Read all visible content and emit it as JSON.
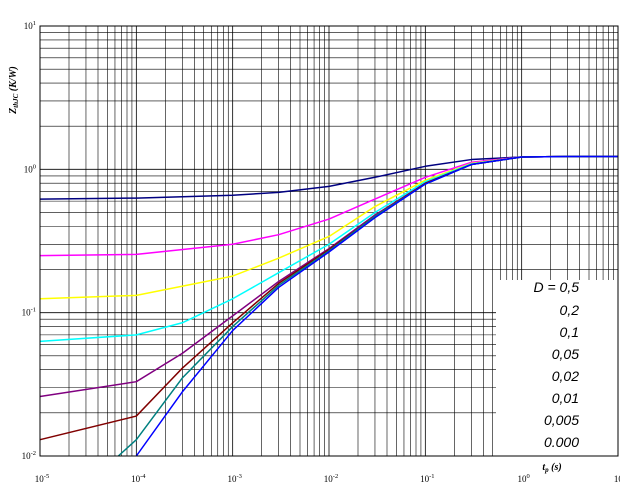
{
  "chart_data": {
    "type": "line",
    "xlabel": {
      "main": "t",
      "sub": "p",
      "unit": " (s)"
    },
    "ylabel": {
      "main": "Z",
      "sub": "thJC",
      "unit": " (K/W)"
    },
    "x_scale": "log",
    "y_scale": "log",
    "xlim": [
      1e-05,
      10
    ],
    "ylim": [
      0.01,
      10
    ],
    "grid": true,
    "x_ticks": [
      {
        "value": 1e-05,
        "base": "10",
        "exp": "-5"
      },
      {
        "value": 0.0001,
        "base": "10",
        "exp": "-4"
      },
      {
        "value": 0.001,
        "base": "10",
        "exp": "-3"
      },
      {
        "value": 0.01,
        "base": "10",
        "exp": "-2"
      },
      {
        "value": 0.1,
        "base": "10",
        "exp": "-1"
      },
      {
        "value": 1,
        "base": "10",
        "exp": "0"
      },
      {
        "value": 10,
        "base": "10",
        "exp": "1"
      }
    ],
    "y_ticks": [
      {
        "value": 0.01,
        "base": "10",
        "exp": "-2"
      },
      {
        "value": 0.1,
        "base": "10",
        "exp": "-1"
      },
      {
        "value": 1,
        "base": "10",
        "exp": "0"
      },
      {
        "value": 10,
        "base": "10",
        "exp": "1"
      }
    ],
    "legend_placement": "bottom-right",
    "series": [
      {
        "name": "D = 0,5",
        "color": "#000080",
        "x": [
          1e-05,
          0.0001,
          0.001,
          0.003,
          0.01,
          0.03,
          0.1,
          0.3,
          1,
          3,
          10
        ],
        "y": [
          0.62,
          0.63,
          0.66,
          0.69,
          0.76,
          0.88,
          1.05,
          1.17,
          1.22,
          1.23,
          1.23
        ]
      },
      {
        "name": "0,2",
        "color": "#ff00ff",
        "x": [
          1e-05,
          0.0001,
          0.001,
          0.003,
          0.01,
          0.03,
          0.1,
          0.3,
          1,
          3,
          10
        ],
        "y": [
          0.25,
          0.255,
          0.3,
          0.35,
          0.45,
          0.62,
          0.88,
          1.12,
          1.22,
          1.23,
          1.23
        ]
      },
      {
        "name": "0,1",
        "color": "#ffff00",
        "x": [
          1e-05,
          0.0001,
          0.001,
          0.003,
          0.01,
          0.03,
          0.1,
          0.3,
          1,
          3,
          10
        ],
        "y": [
          0.125,
          0.132,
          0.18,
          0.24,
          0.34,
          0.55,
          0.84,
          1.1,
          1.22,
          1.23,
          1.23
        ]
      },
      {
        "name": "0,05",
        "color": "#00ffff",
        "x": [
          1e-05,
          0.0001,
          0.0003,
          0.001,
          0.003,
          0.01,
          0.03,
          0.1,
          0.3,
          1,
          3,
          10
        ],
        "y": [
          0.063,
          0.07,
          0.085,
          0.125,
          0.19,
          0.3,
          0.5,
          0.82,
          1.09,
          1.22,
          1.23,
          1.23
        ]
      },
      {
        "name": "0,02",
        "color": "#800080",
        "x": [
          1e-05,
          0.0001,
          0.0003,
          0.001,
          0.003,
          0.01,
          0.03,
          0.1,
          0.3,
          1,
          3,
          10
        ],
        "y": [
          0.026,
          0.033,
          0.052,
          0.095,
          0.165,
          0.28,
          0.48,
          0.8,
          1.08,
          1.22,
          1.23,
          1.23
        ]
      },
      {
        "name": "0,01",
        "color": "#800000",
        "x": [
          1e-05,
          0.0001,
          0.0003,
          0.001,
          0.003,
          0.01,
          0.03,
          0.1,
          0.3,
          1,
          3,
          10
        ],
        "y": [
          0.013,
          0.019,
          0.041,
          0.085,
          0.16,
          0.275,
          0.47,
          0.8,
          1.08,
          1.22,
          1.23,
          1.23
        ]
      },
      {
        "name": "0,005",
        "color": "#008080",
        "x": [
          6.5e-05,
          0.0001,
          0.0003,
          0.001,
          0.003,
          0.01,
          0.03,
          0.1,
          0.3,
          1,
          3,
          10
        ],
        "y": [
          0.01,
          0.013,
          0.035,
          0.08,
          0.155,
          0.27,
          0.47,
          0.79,
          1.08,
          1.22,
          1.23,
          1.23
        ]
      },
      {
        "name": "0.000",
        "color": "#0000ff",
        "x": [
          0.0001,
          0.0003,
          0.001,
          0.003,
          0.01,
          0.03,
          0.1,
          0.3,
          1,
          3,
          10
        ],
        "y": [
          0.01,
          0.028,
          0.075,
          0.15,
          0.265,
          0.46,
          0.79,
          1.08,
          1.22,
          1.23,
          1.23
        ]
      }
    ]
  }
}
